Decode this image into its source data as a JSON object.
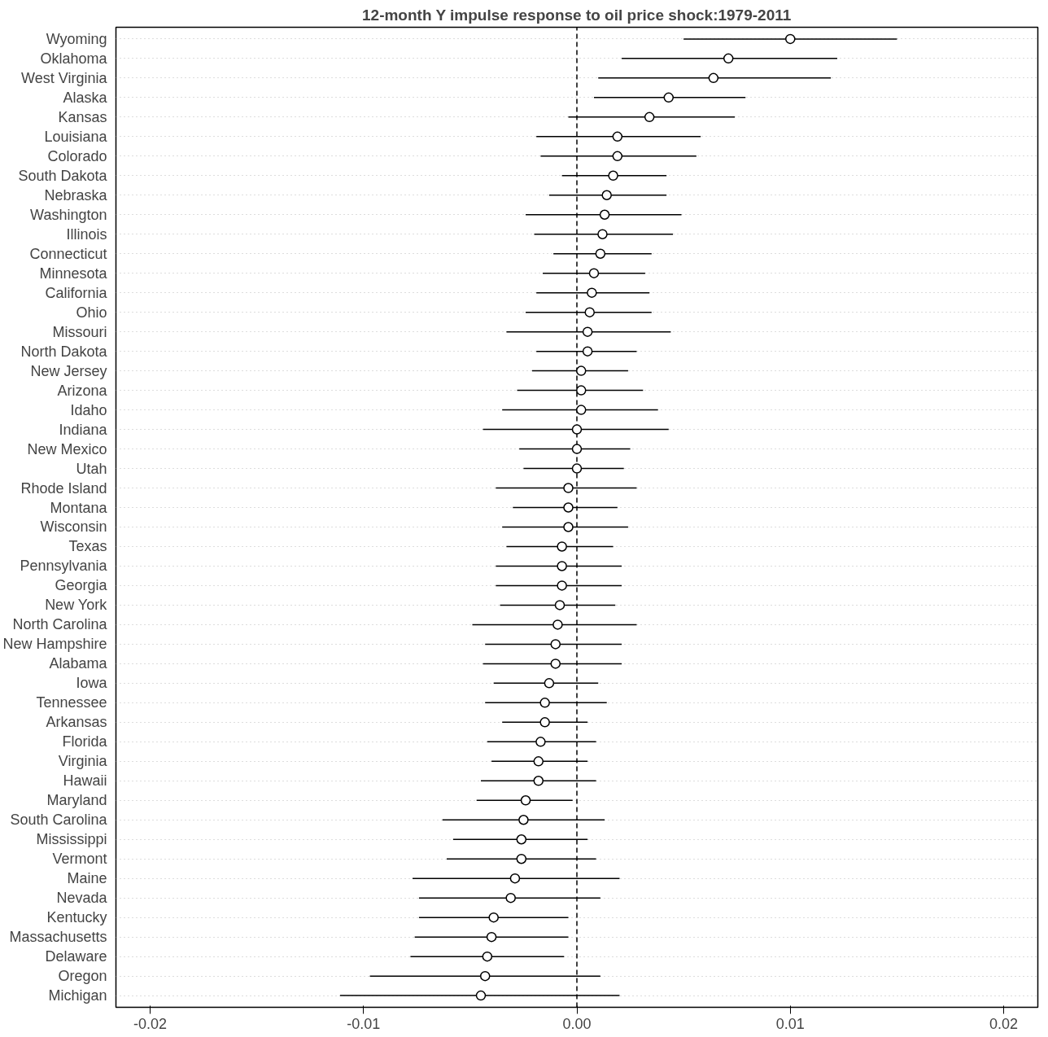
{
  "chart_data": {
    "type": "scatter",
    "title": "12-month Y impulse response to oil price shock:1979-2011",
    "orientation": "horizontal",
    "categories": [
      "Wyoming",
      "Oklahoma",
      "West Virginia",
      "Alaska",
      "Kansas",
      "Louisiana",
      "Colorado",
      "South Dakota",
      "Nebraska",
      "Washington",
      "Illinois",
      "Connecticut",
      "Minnesota",
      "California",
      "Ohio",
      "Missouri",
      "North Dakota",
      "New Jersey",
      "Arizona",
      "Idaho",
      "Indiana",
      "New Mexico",
      "Utah",
      "Rhode Island",
      "Montana",
      "Wisconsin",
      "Texas",
      "Pennsylvania",
      "Georgia",
      "New York",
      "North Carolina",
      "New Hampshire",
      "Alabama",
      "Iowa",
      "Tennessee",
      "Arkansas",
      "Florida",
      "Virginia",
      "Hawaii",
      "Maryland",
      "South Carolina",
      "Mississippi",
      "Vermont",
      "Maine",
      "Nevada",
      "Kentucky",
      "Massachusetts",
      "Delaware",
      "Oregon",
      "Michigan"
    ],
    "values": [
      0.01,
      0.0071,
      0.0064,
      0.0043,
      0.0034,
      0.0019,
      0.0019,
      0.0017,
      0.0014,
      0.0013,
      0.0012,
      0.0011,
      0.0008,
      0.0007,
      0.0006,
      0.0005,
      0.0005,
      0.0002,
      0.0002,
      0.0002,
      0.0,
      0.0,
      0.0,
      -0.0004,
      -0.0004,
      -0.0004,
      -0.0007,
      -0.0007,
      -0.0007,
      -0.0008,
      -0.0009,
      -0.001,
      -0.001,
      -0.0013,
      -0.0015,
      -0.0015,
      -0.0017,
      -0.0018,
      -0.0018,
      -0.0024,
      -0.0025,
      -0.0026,
      -0.0026,
      -0.0029,
      -0.0031,
      -0.0039,
      -0.004,
      -0.0042,
      -0.0043,
      -0.0045
    ],
    "errors": [
      [
        0.005,
        0.015
      ],
      [
        0.0021,
        0.0122
      ],
      [
        0.001,
        0.0119
      ],
      [
        0.0008,
        0.0079
      ],
      [
        -0.0004,
        0.0074
      ],
      [
        -0.0019,
        0.0058
      ],
      [
        -0.0017,
        0.0056
      ],
      [
        -0.0007,
        0.0042
      ],
      [
        -0.0013,
        0.0042
      ],
      [
        -0.0024,
        0.0049
      ],
      [
        -0.002,
        0.0045
      ],
      [
        -0.0011,
        0.0035
      ],
      [
        -0.0016,
        0.0032
      ],
      [
        -0.0019,
        0.0034
      ],
      [
        -0.0024,
        0.0035
      ],
      [
        -0.0033,
        0.0044
      ],
      [
        -0.0019,
        0.0028
      ],
      [
        -0.0021,
        0.0024
      ],
      [
        -0.0028,
        0.0031
      ],
      [
        -0.0035,
        0.0038
      ],
      [
        -0.0044,
        0.0043
      ],
      [
        -0.0027,
        0.0025
      ],
      [
        -0.0025,
        0.0022
      ],
      [
        -0.0038,
        0.0028
      ],
      [
        -0.003,
        0.0019
      ],
      [
        -0.0035,
        0.0024
      ],
      [
        -0.0033,
        0.0017
      ],
      [
        -0.0038,
        0.0021
      ],
      [
        -0.0038,
        0.0021
      ],
      [
        -0.0036,
        0.0018
      ],
      [
        -0.0049,
        0.0028
      ],
      [
        -0.0043,
        0.0021
      ],
      [
        -0.0044,
        0.0021
      ],
      [
        -0.0039,
        0.001
      ],
      [
        -0.0043,
        0.0014
      ],
      [
        -0.0035,
        0.0005
      ],
      [
        -0.0042,
        0.0009
      ],
      [
        -0.004,
        0.0005
      ],
      [
        -0.0045,
        0.0009
      ],
      [
        -0.0047,
        -0.0002
      ],
      [
        -0.0063,
        0.0013
      ],
      [
        -0.0058,
        0.0005
      ],
      [
        -0.0061,
        0.0009
      ],
      [
        -0.0077,
        0.002
      ],
      [
        -0.0074,
        0.0011
      ],
      [
        -0.0074,
        -0.0004
      ],
      [
        -0.0076,
        -0.0004
      ],
      [
        -0.0078,
        -0.0006
      ],
      [
        -0.0097,
        0.0011
      ],
      [
        -0.0111,
        0.002
      ]
    ],
    "xlim": [
      -0.0216,
      0.0216
    ],
    "xticks": [
      -0.02,
      -0.01,
      {
        "value": 0,
        "label": "0.00"
      },
      0.01,
      0.02
    ],
    "ref_lines": [
      {
        "axis": "x",
        "value": 0,
        "line_style": "dashed"
      }
    ],
    "grid": "y",
    "marker": "circle"
  }
}
